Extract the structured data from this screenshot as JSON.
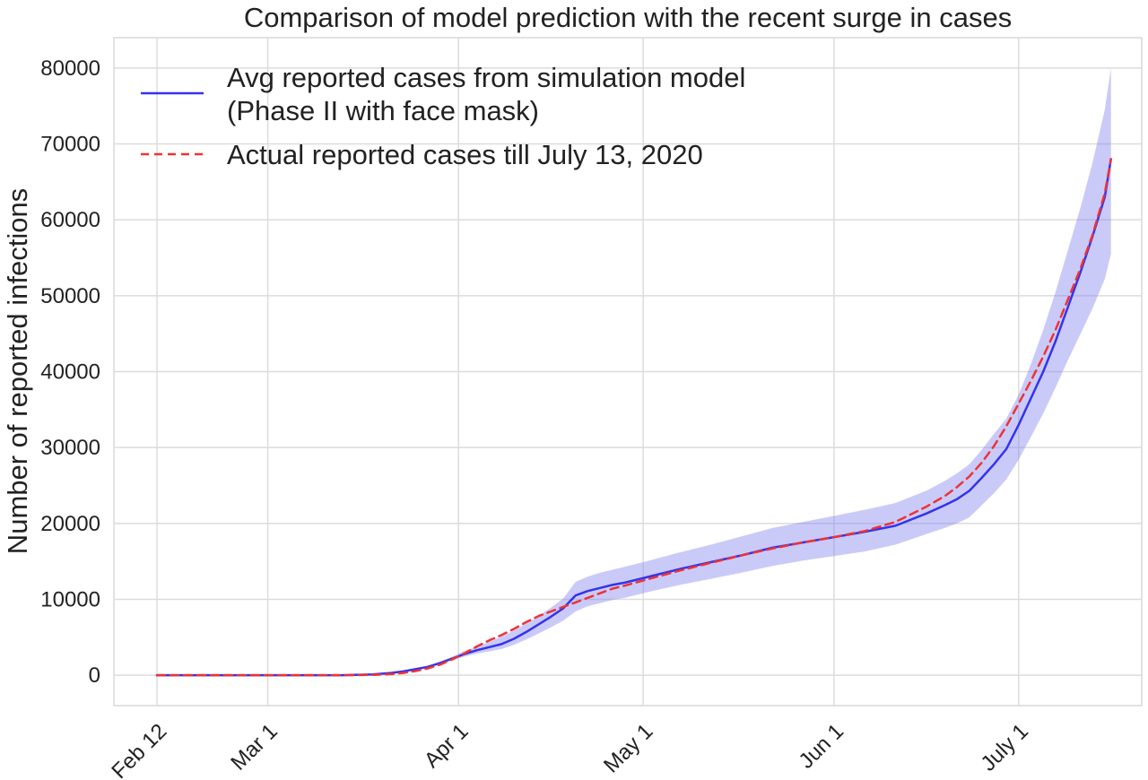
{
  "chart_data": {
    "type": "line",
    "title": "Comparison of model prediction with the recent surge in cases",
    "xlabel": "",
    "ylabel": "Number of reported infections",
    "x_ticks": [
      {
        "label": "Feb 12",
        "day": 0
      },
      {
        "label": "Mar 1",
        "day": 18
      },
      {
        "label": "Apr 1",
        "day": 49
      },
      {
        "label": "May 1",
        "day": 79
      },
      {
        "label": "Jun 1",
        "day": 110
      },
      {
        "label": "July 1",
        "day": 140
      }
    ],
    "y_ticks": [
      0,
      10000,
      20000,
      30000,
      40000,
      50000,
      60000,
      70000,
      80000
    ],
    "xlim_days": [
      -7,
      160
    ],
    "ylim": [
      -4000,
      84000
    ],
    "grid": true,
    "legend_position": "top-left",
    "series": [
      {
        "name": "Avg reported cases from simulation model\n (Phase II with face mask)",
        "style": "solid",
        "color": "#3333ee",
        "x_days": [
          0,
          5,
          10,
          15,
          20,
          25,
          30,
          35,
          38,
          40,
          42,
          44,
          46,
          48,
          50,
          52,
          54,
          56,
          58,
          60,
          62,
          64,
          66,
          68,
          70,
          72,
          74,
          76,
          80,
          85,
          90,
          95,
          100,
          105,
          110,
          115,
          120,
          125,
          128,
          130,
          132,
          134,
          136,
          138,
          140,
          142,
          144,
          146,
          148,
          150,
          152,
          154,
          155
        ],
        "y": [
          0,
          0,
          0,
          0,
          0,
          0,
          0,
          100,
          300,
          500,
          800,
          1100,
          1600,
          2200,
          2800,
          3300,
          3700,
          4100,
          4800,
          5700,
          6700,
          7700,
          8800,
          10500,
          11100,
          11500,
          11900,
          12200,
          13000,
          14000,
          14900,
          15800,
          16800,
          17500,
          18200,
          18900,
          19700,
          21300,
          22400,
          23200,
          24300,
          26000,
          27800,
          29800,
          33000,
          36500,
          40000,
          44000,
          48500,
          53000,
          57800,
          63000,
          68000
        ],
        "band_lower": [
          0,
          0,
          0,
          0,
          0,
          0,
          0,
          80,
          250,
          430,
          700,
          1000,
          1450,
          2000,
          2450,
          2850,
          3150,
          3450,
          4000,
          4700,
          5500,
          6300,
          7200,
          8400,
          9100,
          9500,
          9900,
          10200,
          11000,
          11900,
          12700,
          13500,
          14400,
          15100,
          15700,
          16300,
          17200,
          18600,
          19400,
          20000,
          20800,
          22400,
          24000,
          25800,
          28400,
          31400,
          34500,
          37900,
          41500,
          44900,
          48300,
          52200,
          55500
        ],
        "band_upper": [
          0,
          0,
          0,
          0,
          0,
          0,
          0,
          130,
          360,
          600,
          930,
          1270,
          1800,
          2450,
          3200,
          3800,
          4400,
          5100,
          5900,
          6800,
          7800,
          8900,
          10100,
          12300,
          13000,
          13500,
          13900,
          14300,
          15100,
          16200,
          17200,
          18300,
          19400,
          20200,
          21000,
          21800,
          22700,
          24300,
          25600,
          26600,
          27800,
          29700,
          31800,
          33800,
          37000,
          41000,
          45500,
          50500,
          56000,
          61500,
          67500,
          74500,
          80000
        ]
      },
      {
        "name": "Actual reported cases till July 13, 2020",
        "style": "dashed",
        "color": "#ee3333",
        "x_days": [
          0,
          5,
          10,
          15,
          20,
          25,
          30,
          35,
          38,
          40,
          42,
          44,
          46,
          48,
          50,
          52,
          54,
          56,
          58,
          60,
          62,
          64,
          66,
          68,
          70,
          72,
          74,
          76,
          80,
          85,
          90,
          95,
          100,
          105,
          110,
          115,
          120,
          125,
          128,
          130,
          132,
          134,
          136,
          138,
          140,
          142,
          144,
          146,
          148,
          150,
          152,
          154,
          155
        ],
        "y": [
          0,
          0,
          0,
          0,
          0,
          0,
          0,
          50,
          150,
          300,
          550,
          900,
          1400,
          2100,
          2900,
          3800,
          4600,
          5300,
          6100,
          7000,
          7800,
          8400,
          9000,
          9600,
          10200,
          10800,
          11400,
          11800,
          12700,
          13800,
          14800,
          15800,
          16700,
          17500,
          18200,
          19000,
          20200,
          22200,
          23600,
          24800,
          26200,
          28000,
          30200,
          32800,
          35800,
          38800,
          42000,
          45500,
          49500,
          53500,
          58000,
          63500,
          68000
        ]
      }
    ]
  }
}
